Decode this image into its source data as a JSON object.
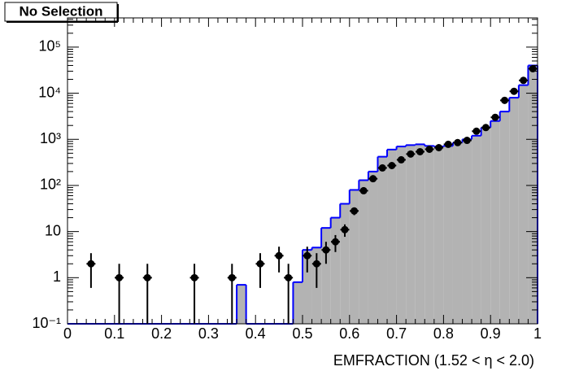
{
  "chart_data": {
    "type": "histogram",
    "title": "No Selection",
    "x_label": "EMFRACTION (1.52 <  η < 2.0)",
    "log_y": true,
    "xlim": [
      0,
      1
    ],
    "ylim": [
      0.1,
      430000
    ],
    "xticks": [
      0,
      0.1,
      0.2,
      0.3,
      0.4,
      0.5,
      0.6,
      0.7,
      0.8,
      0.9,
      1
    ],
    "yticks": [
      {
        "value": 0.1,
        "label": "10⁻¹"
      },
      1,
      10,
      {
        "value": 100,
        "label": "10²"
      },
      {
        "value": 1000,
        "label": "10³"
      },
      {
        "value": 10000,
        "label": "10⁴"
      },
      {
        "value": 100000,
        "label": "10⁵"
      }
    ],
    "histogram": {
      "color": "#0000ff",
      "fill": "#b3b3b3",
      "bins": [
        0,
        0.02,
        0.04,
        0.06,
        0.08,
        0.1,
        0.12,
        0.14,
        0.16,
        0.18,
        0.2,
        0.22,
        0.24,
        0.26,
        0.28,
        0.3,
        0.32,
        0.34,
        0.36,
        0.38,
        0.4,
        0.42,
        0.44,
        0.46,
        0.48,
        0.5,
        0.52,
        0.54,
        0.56,
        0.58,
        0.6,
        0.62,
        0.64,
        0.66,
        0.68,
        0.7,
        0.72,
        0.74,
        0.76,
        0.78,
        0.8,
        0.82,
        0.84,
        0.86,
        0.88,
        0.9,
        0.92,
        0.94,
        0.96,
        0.98,
        1
      ],
      "counts": [
        0,
        0,
        0,
        0,
        0,
        0,
        0,
        0,
        0,
        0,
        0,
        0,
        0,
        0,
        0,
        0,
        0,
        0,
        0.7,
        0,
        0,
        0,
        0,
        0,
        0.8,
        4,
        4.5,
        12,
        20,
        40,
        80,
        130,
        200,
        420,
        600,
        700,
        750,
        780,
        720,
        700,
        720,
        850,
        1000,
        1200,
        1800,
        2500,
        4000,
        8000,
        15000,
        40000
      ]
    },
    "points": {
      "color": "#000000",
      "x": [
        0.05,
        0.11,
        0.17,
        0.27,
        0.35,
        0.41,
        0.45,
        0.47,
        0.51,
        0.53,
        0.55,
        0.57,
        0.59,
        0.61,
        0.63,
        0.65,
        0.67,
        0.69,
        0.71,
        0.73,
        0.75,
        0.77,
        0.79,
        0.81,
        0.83,
        0.85,
        0.87,
        0.89,
        0.91,
        0.93,
        0.95,
        0.97,
        0.99
      ],
      "values": [
        2,
        1,
        1,
        1,
        1,
        2,
        3,
        1,
        3,
        2,
        4,
        6,
        11,
        28,
        77,
        140,
        240,
        270,
        360,
        480,
        540,
        610,
        660,
        780,
        850,
        950,
        1500,
        1800,
        3000,
        7000,
        11000,
        19000,
        34000
      ],
      "errors": [
        1.4,
        1,
        1,
        1,
        1,
        1.4,
        1.7,
        1,
        1.7,
        1.4,
        2,
        2.4,
        3.3,
        5.3,
        8.8,
        12,
        15,
        16,
        19,
        22,
        23,
        25,
        26,
        28,
        29,
        31,
        39,
        42,
        55,
        84,
        105,
        138,
        184
      ]
    }
  }
}
